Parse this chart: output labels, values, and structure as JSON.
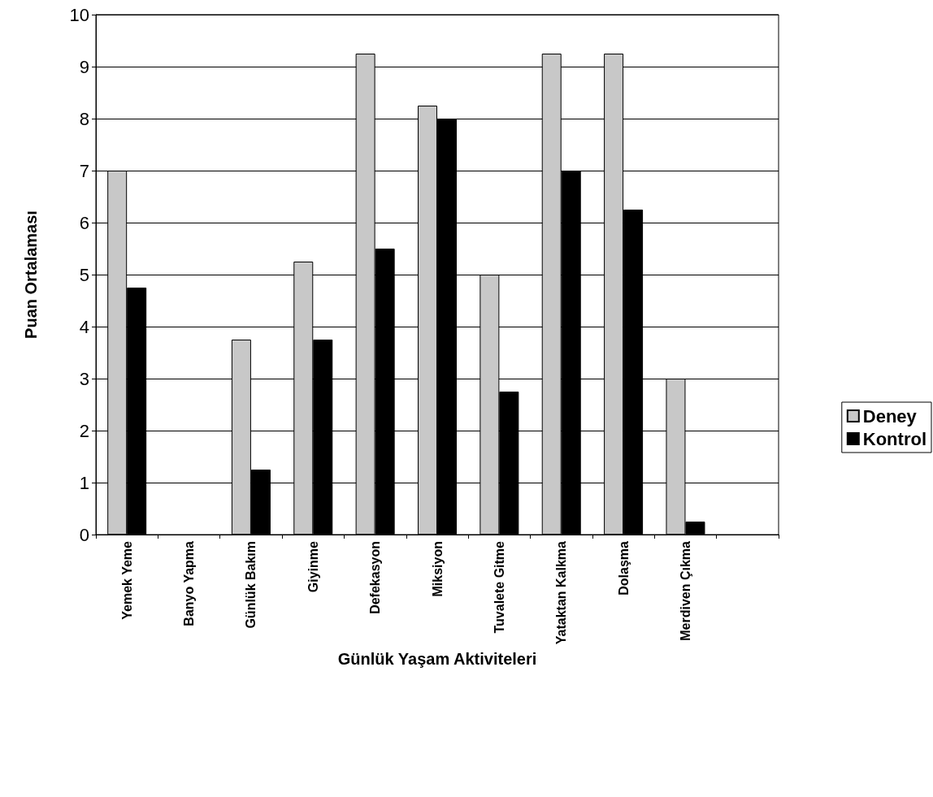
{
  "chart_data": {
    "type": "bar",
    "xlabel": "Günlük Yaşam Aktiviteleri",
    "ylabel": "Puan Ortalaması",
    "categories": [
      "Yemek Yeme",
      "Banyo Yapma",
      "Günlük Bakım",
      "Giyinme",
      "Defekasyon",
      "Miksiyon",
      "Tuvalete Gitme",
      "Yataktan Kalkma",
      "Dolaşma",
      "Merdiven Çıkma",
      null
    ],
    "series": [
      {
        "name": "Deney",
        "color": "#c8c8c8",
        "values": [
          7,
          null,
          3.75,
          5.25,
          9.25,
          8.25,
          5,
          9.25,
          9.25,
          3,
          null
        ]
      },
      {
        "name": "Kontrol",
        "color": "#000000",
        "values": [
          4.75,
          null,
          1.25,
          3.75,
          5.5,
          8,
          2.75,
          7,
          6.25,
          0.25,
          null
        ]
      }
    ],
    "ylim": [
      0,
      10
    ],
    "yticks": [
      0,
      1,
      2,
      3,
      4,
      5,
      6,
      7,
      8,
      9,
      10
    ],
    "grid": "y",
    "legend": "right"
  }
}
